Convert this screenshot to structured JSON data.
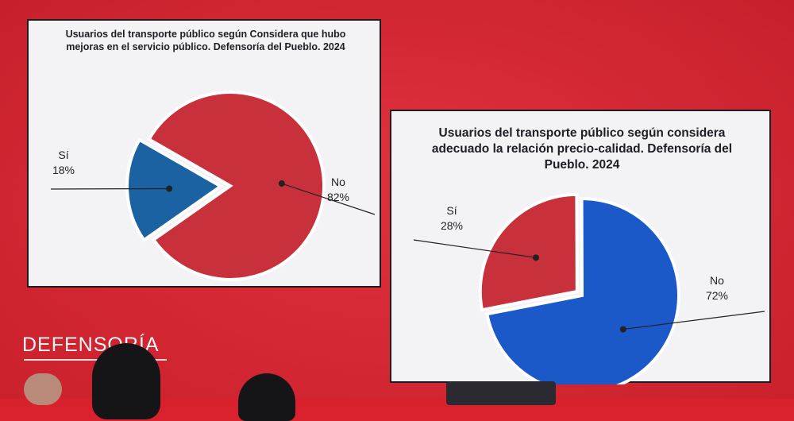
{
  "logo_text": "DEFENSORÍA",
  "chart_data": [
    {
      "type": "pie",
      "title": "Usuarios del transporte público según Considera que hubo mejoras en el servicio público. Defensoría del Pueblo. 2024",
      "slices": [
        {
          "label": "Sí",
          "value": 18,
          "value_label": "18%",
          "color": "#1b62a3",
          "exploded": true
        },
        {
          "label": "No",
          "value": 82,
          "value_label": "82%",
          "color": "#c8303c",
          "exploded": false
        }
      ],
      "legend": "none"
    },
    {
      "type": "pie",
      "title": "Usuarios del transporte público según considera adecuado la relación precio-calidad. Defensoría del Pueblo. 2024",
      "slices": [
        {
          "label": "Sí",
          "value": 28,
          "value_label": "28%",
          "color": "#c8303c",
          "exploded": true
        },
        {
          "label": "No",
          "value": 72,
          "value_label": "72%",
          "color": "#1b58c8",
          "exploded": false
        }
      ],
      "legend": "none"
    }
  ]
}
